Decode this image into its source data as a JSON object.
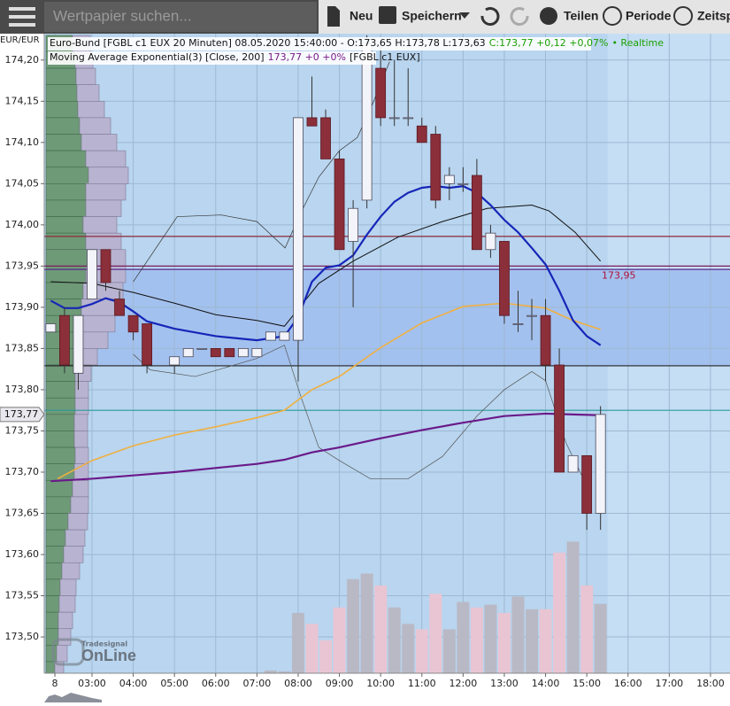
{
  "toolbar": {
    "search_placeholder": "Wertpapier suchen...",
    "buttons": [
      "Neu",
      "Speichern",
      "Teilen",
      "Periode",
      "Zeitsp"
    ]
  },
  "logo": {
    "small": "Tradesignal",
    "big": "OnLine"
  },
  "chart_data": {
    "type": "candlestick",
    "header": [
      "Euro-Bund [FGBL c1 EUX 20 Minuten] 08.05.2020 15:40:00 - O:173,65 H:173,78 L:173,63",
      "C:173,77 +0,12 +0,07%",
      "• Realtime"
    ],
    "indicator": [
      "Moving Average Exponential(3) [Close, 200]",
      "173,77 +0 +0%",
      "[FGBL c1 EUX]"
    ],
    "y_axis_unit": "EUR/EUR",
    "last_price_label": "173,77",
    "annotation": {
      "text": "173,95",
      "value": 173.95
    },
    "xlim": [
      110.5,
      1108.4
    ],
    "ylim": [
      173.456,
      174.232
    ],
    "y2lim": [
      0,
      700
    ],
    "xticks": [
      {
        "value": 126,
        "label": "8"
      },
      {
        "value": 180,
        "label": "03:00"
      },
      {
        "value": 240,
        "label": "04:00"
      },
      {
        "value": 300,
        "label": "05:00"
      },
      {
        "value": 360,
        "label": "06:00"
      },
      {
        "value": 420,
        "label": "07:00"
      },
      {
        "value": 480,
        "label": "08:00"
      },
      {
        "value": 540,
        "label": "09:00"
      },
      {
        "value": 600,
        "label": "10:00"
      },
      {
        "value": 660,
        "label": "11:00"
      },
      {
        "value": 720,
        "label": "12:00"
      },
      {
        "value": 780,
        "label": "13:00"
      },
      {
        "value": 840,
        "label": "14:00"
      },
      {
        "value": 900,
        "label": "15:00"
      },
      {
        "value": 960,
        "label": "16:00"
      },
      {
        "value": 1020,
        "label": "17:00"
      },
      {
        "value": 1080,
        "label": "18:00"
      }
    ],
    "yticks": [
      {
        "value": 173.5,
        "label": "173,50"
      },
      {
        "value": 173.55,
        "label": "173,55"
      },
      {
        "value": 173.6,
        "label": "173,60"
      },
      {
        "value": 173.65,
        "label": "173,65"
      },
      {
        "value": 173.7,
        "label": "173,70"
      },
      {
        "value": 173.75,
        "label": "173,75"
      },
      {
        "value": 173.8,
        "label": "173,80"
      },
      {
        "value": 173.85,
        "label": "173,85"
      },
      {
        "value": 173.9,
        "label": "173,90"
      },
      {
        "value": 173.95,
        "label": "173,95"
      },
      {
        "value": 174,
        "label": "174,00"
      },
      {
        "value": 174.05,
        "label": "174,05"
      },
      {
        "value": 174.1,
        "label": "174,10"
      },
      {
        "value": 174.15,
        "label": "174,15"
      },
      {
        "value": 174.2,
        "label": "174,20"
      }
    ],
    "grid": true,
    "x": [
      120,
      140,
      160,
      180,
      200,
      220,
      240,
      260,
      300,
      320,
      340,
      360,
      380,
      400,
      420,
      440,
      460,
      480,
      500,
      520,
      540,
      560,
      580,
      600,
      620,
      640,
      660,
      680,
      700,
      720,
      740,
      760,
      780,
      800,
      820,
      840,
      860,
      880,
      900,
      920
    ],
    "open": [
      173.87,
      173.89,
      173.82,
      173.91,
      173.97,
      173.91,
      173.89,
      173.88,
      173.83,
      173.84,
      173.85,
      173.85,
      173.85,
      173.84,
      173.84,
      173.86,
      173.86,
      173.86,
      174.13,
      174.13,
      174.08,
      173.98,
      174.03,
      174.19,
      174.13,
      174.13,
      174.12,
      174.11,
      174.05,
      174.05,
      174.06,
      173.97,
      173.98,
      173.88,
      173.89,
      173.89,
      173.83,
      173.7,
      173.72,
      173.65
    ],
    "high": [
      173.88,
      173.9,
      173.89,
      173.97,
      173.97,
      173.92,
      173.89,
      173.88,
      173.84,
      173.85,
      173.85,
      173.85,
      173.85,
      173.85,
      173.85,
      173.87,
      173.87,
      174.13,
      174.18,
      174.14,
      174.09,
      174.03,
      174.23,
      174.22,
      174.2,
      174.19,
      174.13,
      174.12,
      174.07,
      174.07,
      174.08,
      174.0,
      173.98,
      173.92,
      173.91,
      173.91,
      173.85,
      173.72,
      173.72,
      173.78
    ],
    "low": [
      173.87,
      173.82,
      173.8,
      173.91,
      173.92,
      173.89,
      173.86,
      173.82,
      173.82,
      173.84,
      173.85,
      173.84,
      173.84,
      173.84,
      173.84,
      173.86,
      173.86,
      173.81,
      174.12,
      174.08,
      173.97,
      173.9,
      174.02,
      174.12,
      174.12,
      174.12,
      174.1,
      174.02,
      174.03,
      174.04,
      173.97,
      173.96,
      173.88,
      173.87,
      173.86,
      173.81,
      173.7,
      173.7,
      173.63,
      173.63
    ],
    "close": [
      173.88,
      173.83,
      173.89,
      173.97,
      173.93,
      173.89,
      173.87,
      173.83,
      173.84,
      173.85,
      173.85,
      173.84,
      173.84,
      173.85,
      173.85,
      173.87,
      173.87,
      174.13,
      174.12,
      174.08,
      173.97,
      174.02,
      174.22,
      174.13,
      174.13,
      174.13,
      174.1,
      174.03,
      174.06,
      174.05,
      173.97,
      173.99,
      173.89,
      173.88,
      173.89,
      173.83,
      173.7,
      173.72,
      173.65,
      173.77
    ],
    "volume": [
      null,
      null,
      null,
      null,
      null,
      null,
      null,
      null,
      null,
      null,
      null,
      null,
      null,
      null,
      null,
      3,
      2,
      66,
      54,
      36,
      72,
      103,
      109,
      96,
      72,
      54,
      48,
      87,
      48,
      78,
      72,
      75,
      66,
      84,
      70,
      70,
      132,
      144,
      96,
      76
    ],
    "colors": {
      "up": "#f3f3fa",
      "down": "#8b2f3a",
      "volume_up": "#b9b9c6",
      "volume_down": "#e9c5d3"
    },
    "zone": [
      173.829,
      173.946
    ],
    "hlines": [
      {
        "value": 173.986,
        "color": "#8b2a3a"
      },
      {
        "value": 173.95,
        "color": "#7a1f5c"
      },
      {
        "value": 173.946,
        "color": "#5a2a8a"
      },
      {
        "value": 173.829,
        "color": "#222222"
      },
      {
        "value": 173.775,
        "color": "#2a9a9a"
      }
    ],
    "series": [
      {
        "color": "#333333",
        "x": [
          240,
          304,
          368,
          420,
          461,
          484,
          510,
          540,
          566,
          587,
          613
        ],
        "values": [
          173.931,
          174.01,
          174.012,
          174.004,
          173.972,
          174.015,
          174.058,
          174.09,
          174.106,
          174.144,
          174.198
        ]
      },
      {
        "color": "#555555",
        "x": [
          240,
          265,
          330,
          420,
          460,
          485,
          510,
          540,
          585,
          640,
          690,
          740,
          780,
          820,
          840,
          870,
          895
        ],
        "values": [
          173.843,
          173.824,
          173.816,
          173.838,
          173.854,
          173.789,
          173.73,
          173.714,
          173.692,
          173.692,
          173.719,
          173.768,
          173.8,
          173.822,
          173.811,
          173.735,
          173.692
        ]
      },
      {
        "color": "#111111",
        "x": [
          120,
          180,
          240,
          300,
          360,
          420,
          460,
          510,
          560,
          625,
          690,
          755,
          820,
          845,
          883,
          920
        ],
        "values": [
          173.931,
          173.929,
          173.918,
          173.905,
          173.891,
          173.884,
          173.877,
          173.929,
          173.956,
          173.985,
          174.004,
          174.02,
          174.024,
          174.017,
          173.991,
          173.956
        ]
      },
      {
        "color": "#f0b040",
        "x": [
          130,
          180,
          240,
          300,
          360,
          420,
          460,
          500,
          540,
          600,
          660,
          720,
          780,
          840,
          880,
          920
        ],
        "values": [
          173.692,
          173.714,
          173.732,
          173.745,
          173.755,
          173.766,
          173.775,
          173.8,
          173.816,
          173.851,
          173.881,
          173.901,
          173.905,
          173.899,
          173.884,
          173.873
        ]
      },
      {
        "color": "#6a1a8a",
        "x": [
          120,
          180,
          240,
          300,
          360,
          420,
          460,
          500,
          540,
          600,
          660,
          720,
          780,
          840,
          880,
          920
        ],
        "values": [
          173.689,
          173.692,
          173.696,
          173.7,
          173.705,
          173.71,
          173.715,
          173.724,
          173.73,
          173.741,
          173.751,
          173.76,
          173.768,
          173.771,
          173.77,
          173.769
        ]
      },
      {
        "color": "#1626b8",
        "x": [
          120,
          140,
          160,
          180,
          200,
          220,
          240,
          260,
          300,
          360,
          420,
          460,
          480,
          500,
          520,
          540,
          560,
          580,
          600,
          620,
          640,
          660,
          680,
          700,
          720,
          740,
          760,
          780,
          800,
          820,
          840,
          860,
          880,
          900,
          920
        ],
        "values": [
          173.908,
          173.899,
          173.899,
          173.904,
          173.911,
          173.906,
          173.895,
          173.883,
          173.874,
          173.865,
          173.86,
          173.865,
          173.888,
          173.931,
          173.948,
          173.951,
          173.963,
          173.988,
          174.01,
          174.028,
          174.039,
          174.045,
          174.047,
          174.045,
          174.047,
          174.039,
          174.024,
          174.006,
          173.991,
          173.972,
          173.952,
          173.92,
          173.884,
          173.865,
          173.854
        ]
      }
    ],
    "volume_profile": {
      "levels": [
        174.22,
        174.2,
        174.18,
        174.16,
        174.14,
        174.12,
        174.1,
        174.08,
        174.06,
        174.04,
        174.02,
        174,
        173.98,
        173.96,
        173.94,
        173.92,
        173.9,
        173.88,
        173.86,
        173.84,
        173.82,
        173.8,
        173.78,
        173.76,
        173.74,
        173.72,
        173.7,
        173.68,
        173.66,
        173.64,
        173.62,
        173.6,
        173.58,
        173.56,
        173.54,
        173.52,
        173.5,
        173.48,
        173.46
      ],
      "series": [
        {
          "color": "#6f9a78",
          "values": [
            30,
            33,
            34,
            35,
            36,
            38,
            40,
            45,
            48,
            45,
            45,
            42,
            45,
            48,
            45,
            42,
            40,
            38,
            35,
            33,
            33,
            33,
            33,
            32,
            32,
            33,
            32,
            30,
            28,
            25,
            22,
            20,
            18,
            16,
            15,
            14,
            14,
            12,
            10
          ]
        },
        {
          "color": "#b8b3d0",
          "values": [
            20,
            20,
            22,
            25,
            30,
            35,
            40,
            45,
            45,
            45,
            40,
            38,
            40,
            42,
            45,
            45,
            45,
            40,
            35,
            25,
            18,
            15,
            15,
            15,
            15,
            15,
            16,
            18,
            20,
            22,
            22,
            22,
            20,
            18,
            18,
            16,
            14,
            12,
            10
          ]
        }
      ]
    }
  }
}
